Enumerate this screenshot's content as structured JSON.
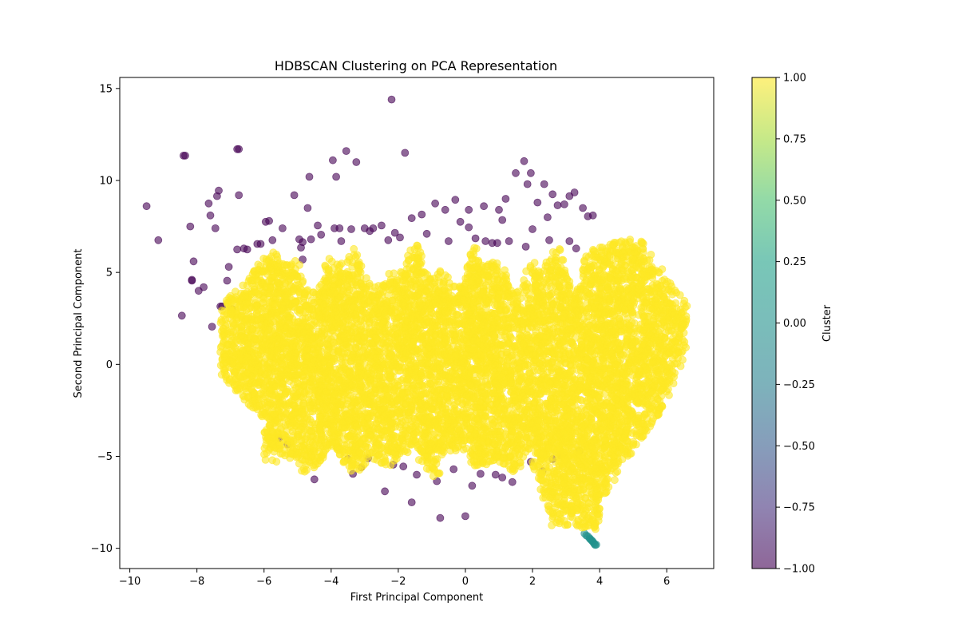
{
  "chart_data": {
    "type": "scatter",
    "title": "HDBSCAN Clustering on PCA Representation",
    "xlabel": "First Principal Component",
    "ylabel": "Second Principal Component",
    "xlim": [
      -10.3,
      7.4
    ],
    "ylim": [
      -11.1,
      15.6
    ],
    "x_ticks": [
      -10,
      -8,
      -6,
      -4,
      -2,
      0,
      2,
      4,
      6
    ],
    "y_ticks": [
      -10,
      -5,
      0,
      5,
      10,
      15
    ],
    "grid": false,
    "point_alpha": 0.6,
    "colorbar": {
      "label": "Cluster",
      "range": [
        -1.0,
        1.0
      ],
      "ticks": [
        "1.00",
        "0.75",
        "0.50",
        "0.25",
        "0.00",
        "−0.25",
        "−0.50",
        "−0.75",
        "−1.00"
      ],
      "colormap": "viridis"
    },
    "cluster_colors": {
      "-1": "#440154",
      "0": "#21918c",
      "1": "#fde725"
    },
    "series": [
      {
        "cluster": -1,
        "x": [
          -8.4,
          -8.35,
          -6.8,
          -6.75,
          -9.5,
          -9.15,
          -8.2,
          -8.1,
          -7.95,
          -8.15,
          -8.15,
          -7.8,
          -7.65,
          -7.6,
          -7.45,
          -7.4,
          -7.35,
          -7.3,
          -7.25,
          -7.1,
          -7.05,
          -6.95,
          -6.75,
          -6.6,
          -6.5,
          -6.2,
          -5.95,
          -5.85,
          -5.75,
          -5.45,
          -5.1,
          -4.95,
          -4.85,
          -4.85,
          -4.7,
          -4.65,
          -4.4,
          -4.3,
          -3.95,
          -3.85,
          -3.75,
          -3.7,
          -3.55,
          -3.25,
          -3.0,
          -2.75,
          -2.5,
          -2.3,
          -2.1,
          -1.95,
          -1.6,
          -1.3,
          -1.15,
          -0.9,
          -0.6,
          -0.3,
          -0.15,
          0.1,
          0.3,
          0.55,
          0.8,
          1.0,
          1.1,
          1.2,
          1.5,
          1.75,
          1.85,
          1.95,
          2.15,
          2.35,
          2.45,
          2.6,
          2.75,
          2.95,
          3.1,
          3.25,
          3.5,
          3.65,
          3.8,
          -3.4,
          -4.6,
          -3.9,
          -2.2,
          -1.8,
          -0.5,
          0.1,
          0.6,
          0.95,
          1.3,
          1.8,
          2.5,
          3.1,
          -8.45,
          -7.55,
          -5.55,
          -5.3,
          -3.5,
          -3.35,
          -3.1,
          -2.9,
          -2.15,
          -1.85,
          -1.45,
          -0.85,
          -0.35,
          0.45,
          0.9,
          1.1,
          1.95,
          2.3,
          2.85,
          3.4,
          -0.75,
          0.0,
          -1.6,
          -2.4,
          -4.5,
          0.2,
          1.4,
          2.6,
          -6.8,
          -6.1,
          -4.9,
          -2.85,
          3.3,
          2.0
        ],
        "y": [
          11.35,
          11.35,
          11.7,
          11.7,
          8.6,
          6.75,
          7.5,
          5.6,
          4.0,
          4.55,
          4.6,
          4.2,
          8.75,
          8.1,
          7.4,
          9.15,
          9.45,
          3.15,
          3.15,
          4.55,
          5.3,
          3.0,
          9.2,
          6.3,
          6.25,
          6.55,
          7.75,
          7.8,
          6.75,
          7.4,
          9.2,
          6.8,
          6.65,
          5.7,
          8.5,
          10.2,
          7.55,
          7.05,
          11.1,
          10.2,
          7.4,
          6.7,
          11.6,
          11.0,
          7.4,
          7.4,
          7.55,
          6.75,
          7.15,
          6.9,
          7.95,
          8.15,
          7.1,
          8.75,
          8.4,
          8.95,
          7.75,
          7.45,
          6.85,
          8.6,
          6.6,
          8.4,
          7.85,
          9.0,
          10.4,
          11.05,
          9.8,
          10.4,
          8.8,
          9.8,
          8.0,
          9.25,
          8.65,
          8.7,
          9.15,
          9.35,
          8.5,
          8.05,
          8.1,
          7.35,
          6.8,
          7.4,
          14.4,
          11.5,
          6.7,
          8.4,
          6.7,
          6.6,
          6.7,
          6.4,
          6.75,
          6.7,
          2.65,
          2.05,
          -4.0,
          -4.35,
          -5.15,
          -5.95,
          -5.6,
          -5.1,
          -5.45,
          -5.55,
          -6.0,
          -6.35,
          -5.7,
          -5.95,
          -6.0,
          -6.15,
          -5.3,
          -5.8,
          -4.95,
          -4.7,
          -8.35,
          -8.25,
          -7.5,
          -6.9,
          -6.25,
          -6.6,
          -6.4,
          -5.15,
          6.25,
          6.55,
          6.35,
          7.25,
          6.3,
          7.35
        ]
      },
      {
        "cluster": 0,
        "x": [
          3.55,
          3.6,
          3.65,
          3.7,
          3.72,
          3.75,
          3.78,
          3.8,
          3.83,
          3.85,
          3.87,
          3.9
        ],
        "y": [
          -9.2,
          -9.3,
          -9.35,
          -9.45,
          -9.5,
          -9.55,
          -9.6,
          -9.65,
          -9.72,
          -9.78,
          -9.82,
          -9.8
        ]
      },
      {
        "cluster": 1,
        "generated": true,
        "count": 9000,
        "x_range": [
          -7.3,
          6.6
        ],
        "y_range": [
          -9.2,
          7.8
        ]
      }
    ]
  }
}
